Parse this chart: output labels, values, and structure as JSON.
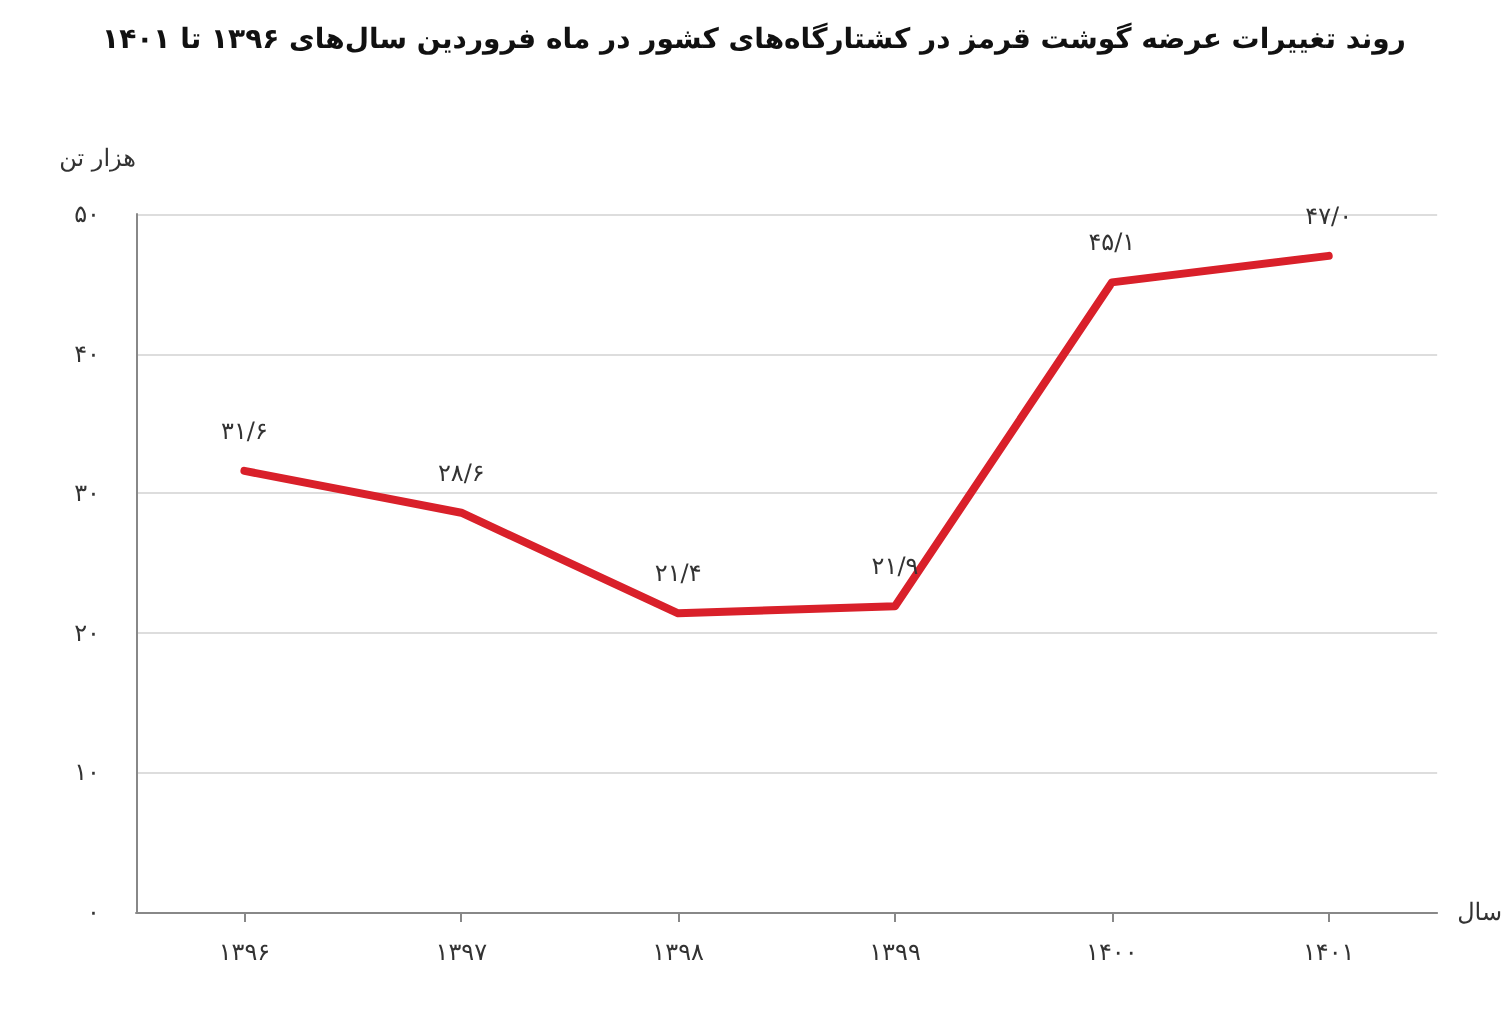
{
  "chart_data": {
    "type": "line",
    "title": "روند تغییرات عرضه گوشت قرمز در کشتارگاه‌های کشور در ماه فروردین سال‌های ۱۳۹۶ تا ۱۴۰۱",
    "xlabel": "سال",
    "ylabel": "هزار تن",
    "categories": [
      "۱۳۹۶",
      "۱۳۹۷",
      "۱۳۹۸",
      "۱۳۹۹",
      "۱۴۰۰",
      "۱۴۰۱"
    ],
    "series": [
      {
        "color": "#d9202a",
        "values": [
          31.6,
          28.6,
          21.4,
          21.9,
          45.1,
          47.0
        ],
        "value_labels": [
          "۳۱/۶",
          "۲۸/۶",
          "۲۱/۴",
          "۲۱/۹",
          "۴۵/۱",
          "۴۷/۰"
        ]
      }
    ],
    "ylim": [
      0,
      50
    ],
    "yticks": [
      {
        "value": 0,
        "label": "۰"
      },
      {
        "value": 10,
        "label": "۱۰"
      },
      {
        "value": 20,
        "label": "۲۰"
      },
      {
        "value": 30,
        "label": "۳۰"
      },
      {
        "value": 40,
        "label": "۴۰"
      },
      {
        "value": 50,
        "label": "۵۰"
      }
    ],
    "grid": "y",
    "marker": "none",
    "line_style": "solid"
  }
}
